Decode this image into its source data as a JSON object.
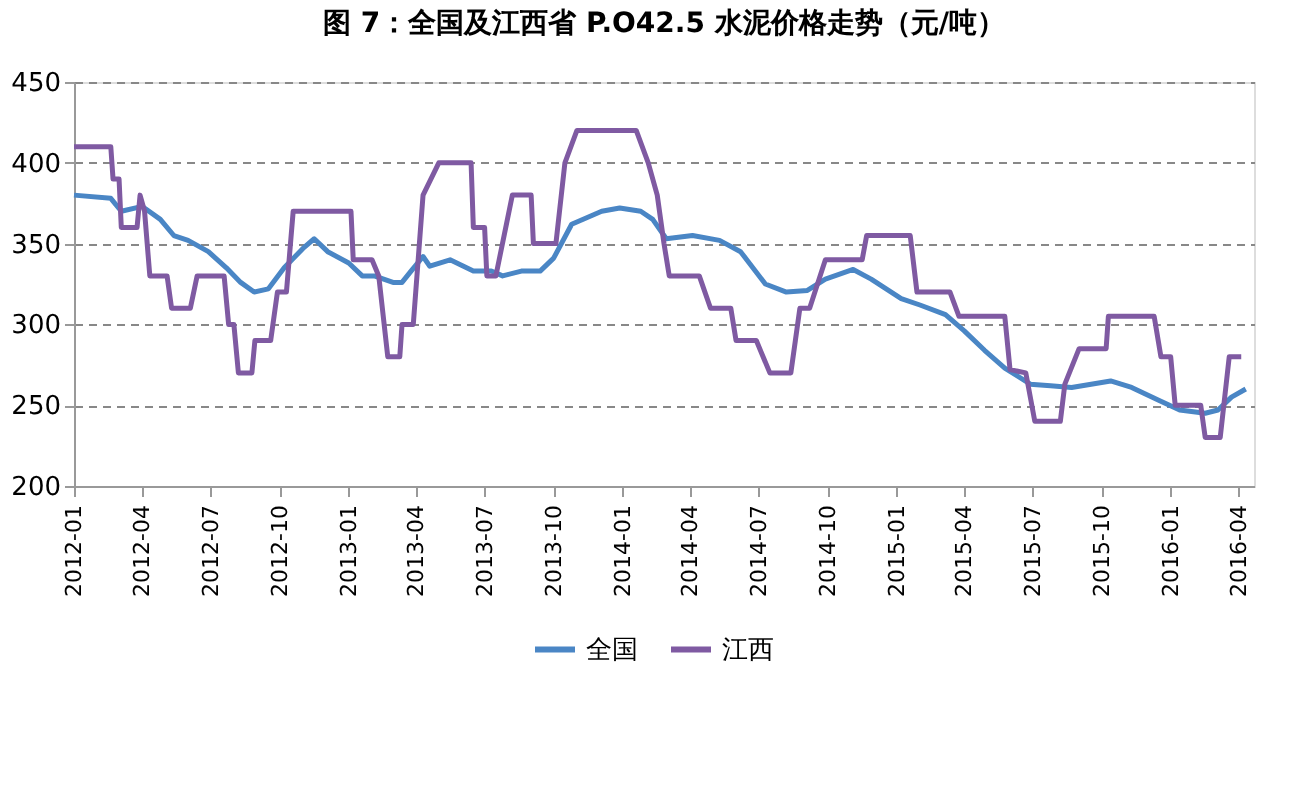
{
  "chart_data": {
    "type": "line",
    "title": "图 7：全国及江西省 P.O42.5 水泥价格走势（元/吨）",
    "xlim": [
      "2012-01-01",
      "2016-04-21"
    ],
    "xticks": [
      "2012-01",
      "2012-04",
      "2012-07",
      "2012-10",
      "2013-01",
      "2013-04",
      "2013-07",
      "2013-10",
      "2014-01",
      "2014-04",
      "2014-07",
      "2014-10",
      "2015-01",
      "2015-04",
      "2015-07",
      "2015-10",
      "2016-01",
      "2016-04"
    ],
    "ylim": [
      200,
      450
    ],
    "yticks": [
      200,
      250,
      300,
      350,
      400,
      450
    ],
    "grid": "y",
    "legend": "bottom",
    "marker": "none",
    "line_style": "solid",
    "series": [
      {
        "name": "全国",
        "color": "#4a86c5",
        "x": [
          "2012-01-01",
          "2012-02-19",
          "2012-03-04",
          "2012-04-01",
          "2012-04-25",
          "2012-05-13",
          "2012-06-01",
          "2012-06-28",
          "2012-07-22",
          "2012-08-10",
          "2012-08-28",
          "2012-09-16",
          "2012-10-07",
          "2012-11-01",
          "2012-11-16",
          "2012-12-04",
          "2013-01-01",
          "2013-01-19",
          "2013-02-04",
          "2013-03-01",
          "2013-03-13",
          "2013-03-25",
          "2013-04-10",
          "2013-04-19",
          "2013-05-16",
          "2013-06-16",
          "2013-07-10",
          "2013-07-25",
          "2013-08-19",
          "2013-09-13",
          "2013-10-01",
          "2013-10-25",
          "2013-12-04",
          "2013-12-28",
          "2014-01-25",
          "2014-02-10",
          "2014-02-28",
          "2014-04-04",
          "2014-05-10",
          "2014-06-07",
          "2014-07-10",
          "2014-08-07",
          "2014-09-04",
          "2014-09-28",
          "2014-11-04",
          "2014-11-28",
          "2015-01-07",
          "2015-02-01",
          "2015-03-07",
          "2015-04-01",
          "2015-04-28",
          "2015-05-25",
          "2015-06-28",
          "2015-07-25",
          "2015-08-22",
          "2015-10-13",
          "2015-11-10",
          "2015-12-16",
          "2016-01-13",
          "2016-02-16",
          "2016-03-04",
          "2016-03-22",
          "2016-04-10"
        ],
        "values": [
          380,
          378,
          370,
          373,
          365,
          355,
          352,
          345,
          335,
          326,
          320,
          322,
          335,
          347,
          353,
          345,
          338,
          330,
          330,
          326,
          326,
          333,
          342,
          336,
          340,
          333,
          333,
          330,
          333,
          333,
          341,
          362,
          370,
          372,
          370,
          365,
          353,
          355,
          352,
          345,
          325,
          320,
          321,
          328,
          334,
          328,
          316,
          312,
          306,
          296,
          284,
          273,
          263,
          262,
          261,
          265,
          261,
          253,
          247,
          245,
          247,
          255,
          260
        ]
      },
      {
        "name": "江西",
        "color": "#7f5aa2",
        "x": [
          "2012-01-01",
          "2012-02-19",
          "2012-02-22",
          "2012-03-01",
          "2012-03-04",
          "2012-03-25",
          "2012-03-29",
          "2012-04-04",
          "2012-04-11",
          "2012-05-04",
          "2012-05-10",
          "2012-06-04",
          "2012-06-13",
          "2012-07-19",
          "2012-07-25",
          "2012-08-01",
          "2012-08-07",
          "2012-08-25",
          "2012-08-29",
          "2012-09-19",
          "2012-09-28",
          "2012-10-10",
          "2012-10-19",
          "2013-01-04",
          "2013-01-07",
          "2013-02-01",
          "2013-02-10",
          "2013-02-22",
          "2013-03-10",
          "2013-03-13",
          "2013-03-28",
          "2013-04-10",
          "2013-05-01",
          "2013-06-13",
          "2013-06-16",
          "2013-07-01",
          "2013-07-04",
          "2013-07-16",
          "2013-08-07",
          "2013-09-01",
          "2013-09-04",
          "2013-10-04",
          "2013-10-16",
          "2013-11-01",
          "2014-01-19",
          "2014-02-04",
          "2014-02-16",
          "2014-02-25",
          "2014-03-04",
          "2014-04-13",
          "2014-04-28",
          "2014-05-25",
          "2014-06-01",
          "2014-06-28",
          "2014-07-07",
          "2014-07-16",
          "2014-08-13",
          "2014-08-19",
          "2014-08-25",
          "2014-09-07",
          "2014-09-28",
          "2014-11-16",
          "2014-11-22",
          "2015-01-19",
          "2015-01-28",
          "2015-03-13",
          "2015-03-25",
          "2015-05-25",
          "2015-06-01",
          "2015-06-22",
          "2015-07-04",
          "2015-08-07",
          "2015-08-13",
          "2015-09-01",
          "2015-10-07",
          "2015-10-10",
          "2015-12-10",
          "2015-12-19",
          "2016-01-01",
          "2016-01-07",
          "2016-02-10",
          "2016-02-16",
          "2016-03-07",
          "2016-03-19",
          "2016-04-04"
        ],
        "values": [
          410,
          410,
          390,
          390,
          360,
          360,
          380,
          370,
          330,
          330,
          310,
          310,
          330,
          330,
          300,
          300,
          270,
          270,
          290,
          290,
          320,
          320,
          370,
          370,
          340,
          340,
          330,
          280,
          280,
          300,
          300,
          380,
          400,
          400,
          360,
          360,
          330,
          330,
          380,
          380,
          350,
          350,
          400,
          420,
          420,
          400,
          380,
          350,
          330,
          330,
          310,
          310,
          290,
          290,
          280,
          270,
          270,
          290,
          310,
          310,
          340,
          340,
          355,
          355,
          320,
          320,
          305,
          305,
          272,
          270,
          240,
          240,
          263,
          285,
          285,
          305,
          305,
          280,
          280,
          250,
          250,
          230,
          230,
          280,
          280
        ]
      }
    ]
  }
}
